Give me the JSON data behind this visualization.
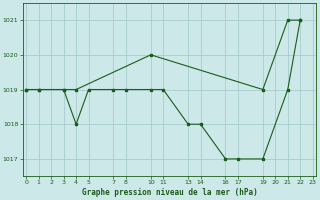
{
  "title": "Graphe pression niveau de la mer (hPa)",
  "bg_color": "#cce8e8",
  "line_color": "#1a5c1a",
  "grid_color": "#a0c8c8",
  "line1_hours": [
    0,
    1,
    3,
    4,
    10,
    19,
    21,
    22
  ],
  "line1_pressure": [
    1019,
    1019,
    1019,
    1019,
    1020,
    1019,
    1021,
    1021
  ],
  "line2_hours": [
    0,
    1,
    3,
    4,
    5,
    7,
    8,
    10,
    11,
    13,
    14,
    16,
    17,
    19,
    21,
    22
  ],
  "line2_pressure": [
    1019,
    1019,
    1019,
    1018,
    1019,
    1019,
    1019,
    1019,
    1019,
    1018,
    1018,
    1017,
    1017,
    1017,
    1019,
    1021
  ],
  "ylim": [
    1016.5,
    1021.5
  ],
  "yticks": [
    1017,
    1018,
    1019,
    1020,
    1021
  ],
  "xticks": [
    0,
    1,
    2,
    3,
    4,
    5,
    7,
    8,
    10,
    11,
    13,
    14,
    16,
    17,
    19,
    20,
    21,
    22,
    23
  ],
  "xlim": [
    -0.3,
    23.3
  ],
  "figsize": [
    3.2,
    2.0
  ],
  "dpi": 100
}
